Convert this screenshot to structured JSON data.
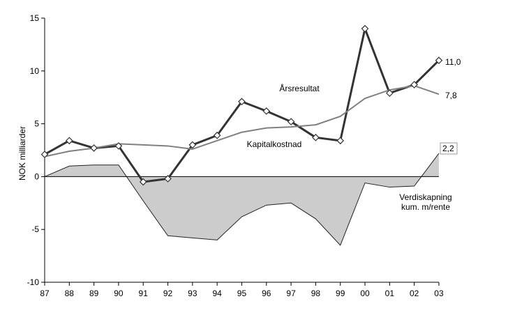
{
  "chart_data": {
    "type": "line",
    "ylabel": "NOK milliarder",
    "ylim": [
      -10,
      15
    ],
    "yticks": [
      15,
      10,
      5,
      0,
      -5,
      -10
    ],
    "ytick_labels": [
      "15",
      "10",
      "5",
      "0",
      "-5",
      "-10"
    ],
    "categories": [
      "87",
      "88",
      "89",
      "90",
      "91",
      "92",
      "93",
      "94",
      "95",
      "96",
      "97",
      "98",
      "99",
      "00",
      "01",
      "02",
      "03"
    ],
    "series": [
      {
        "name": "Årsresultat",
        "kind": "line-markers",
        "color": "#333333",
        "values": [
          2.1,
          3.4,
          2.7,
          2.9,
          -0.5,
          -0.2,
          3.0,
          3.9,
          7.1,
          6.2,
          5.2,
          3.7,
          3.4,
          14.0,
          7.9,
          8.7,
          11.0
        ]
      },
      {
        "name": "Kapitalkostnad",
        "kind": "line",
        "color": "#808080",
        "values": [
          1.9,
          2.4,
          2.7,
          3.1,
          3.0,
          2.9,
          2.6,
          3.4,
          4.2,
          4.6,
          4.7,
          4.9,
          5.7,
          7.4,
          8.2,
          8.6,
          7.8
        ]
      },
      {
        "name": "Verdiskapning kum. m/rente",
        "kind": "area",
        "color": "#cccccc",
        "values": [
          0.0,
          1.0,
          1.1,
          1.1,
          -2.3,
          -5.6,
          -5.8,
          -6.0,
          -3.8,
          -2.7,
          -2.5,
          -4.0,
          -6.5,
          -0.6,
          -1.0,
          -0.9,
          2.2
        ]
      }
    ],
    "annotations": {
      "arsresultat": "Årsresultat",
      "kapitalkostnad": "Kapitalkostnad",
      "verdiskapning_line1": "Verdiskapning",
      "verdiskapning_line2": "kum. m/rente",
      "end_label_arsresultat": "11,0",
      "end_label_kapitalkostnad": "7,8",
      "end_label_verdiskapning": "2,2"
    }
  }
}
